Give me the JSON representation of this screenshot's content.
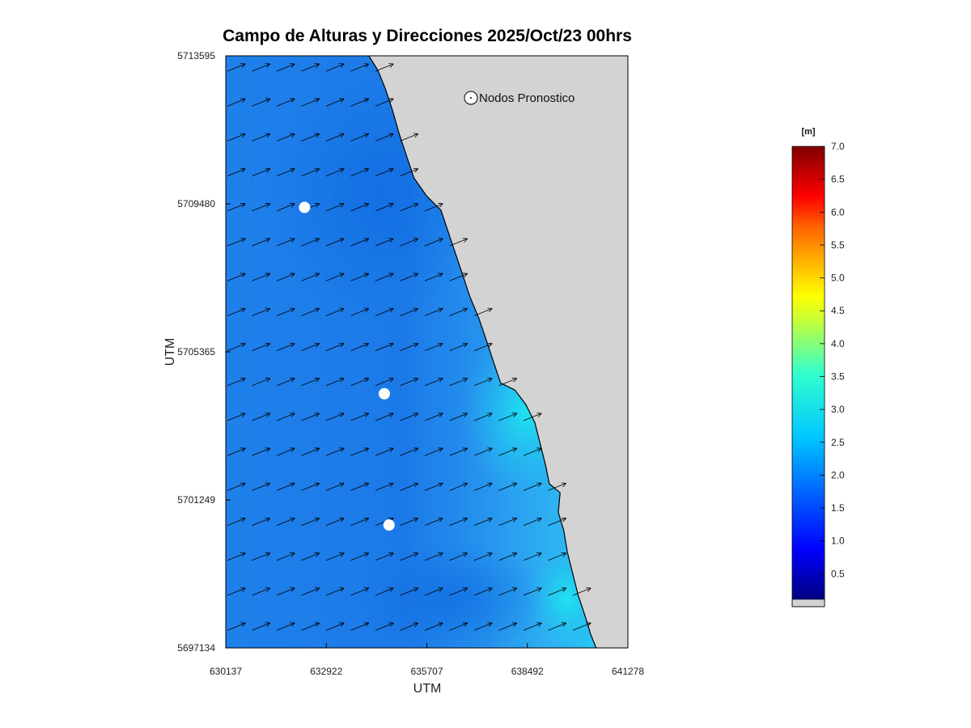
{
  "chart_data": {
    "type": "heatmap",
    "title": "Campo de Alturas y Direcciones 2025/Oct/23  00hrs",
    "xlabel": "UTM",
    "ylabel": "UTM",
    "x_ticks": [
      630137,
      632922,
      635707,
      638492,
      641278
    ],
    "y_ticks": [
      5697134,
      5701249,
      5705365,
      5709480,
      5713595
    ],
    "xlim": [
      630137,
      641278
    ],
    "ylim": [
      5697134,
      5713595
    ],
    "legend": {
      "label": "Nodos Pronostico",
      "placement": "top-right"
    },
    "forecast_nodes": [
      {
        "x": 632320,
        "y": 5709380
      },
      {
        "x": 634530,
        "y": 5704200
      },
      {
        "x": 634660,
        "y": 5700550
      }
    ],
    "coastline": [
      [
        630137,
        5713595
      ],
      [
        634100,
        5713595
      ],
      [
        634350,
        5713200
      ],
      [
        634550,
        5712700
      ],
      [
        634750,
        5712100
      ],
      [
        634950,
        5711400
      ],
      [
        635150,
        5710800
      ],
      [
        635350,
        5710200
      ],
      [
        635700,
        5709700
      ],
      [
        636100,
        5709300
      ],
      [
        636300,
        5708700
      ],
      [
        636500,
        5708100
      ],
      [
        636700,
        5707500
      ],
      [
        636900,
        5706900
      ],
      [
        637150,
        5706300
      ],
      [
        637350,
        5705700
      ],
      [
        637550,
        5705100
      ],
      [
        637750,
        5704500
      ],
      [
        638150,
        5704300
      ],
      [
        638450,
        5703900
      ],
      [
        638700,
        5703400
      ],
      [
        638850,
        5702800
      ],
      [
        639000,
        5702200
      ],
      [
        639100,
        5701700
      ],
      [
        639400,
        5701450
      ],
      [
        639350,
        5700900
      ],
      [
        639500,
        5700400
      ],
      [
        639600,
        5699800
      ],
      [
        639750,
        5699200
      ],
      [
        639900,
        5698600
      ],
      [
        640100,
        5698000
      ],
      [
        640250,
        5697500
      ],
      [
        640400,
        5697134
      ],
      [
        630137,
        5697134
      ]
    ],
    "wave_direction_deg_from_east": 22,
    "height_range_m": "approx. 1.5 to 2.6",
    "colorbar": {
      "unit": "[m]",
      "min": 0,
      "max": 7.0,
      "ticks": [
        "0.5",
        "1.0",
        "1.5",
        "2.0",
        "2.5",
        "3.0",
        "3.5",
        "4.0",
        "4.5",
        "5.0",
        "5.5",
        "6.0",
        "6.5",
        "7.0"
      ]
    },
    "colors": {
      "land": "#d3d3d3",
      "sea_low": "#1a78e6",
      "sea_mid": "#2b9cf0",
      "sea_high": "#19e0f0",
      "node": "#ffffff",
      "arrow": "#000000"
    }
  }
}
